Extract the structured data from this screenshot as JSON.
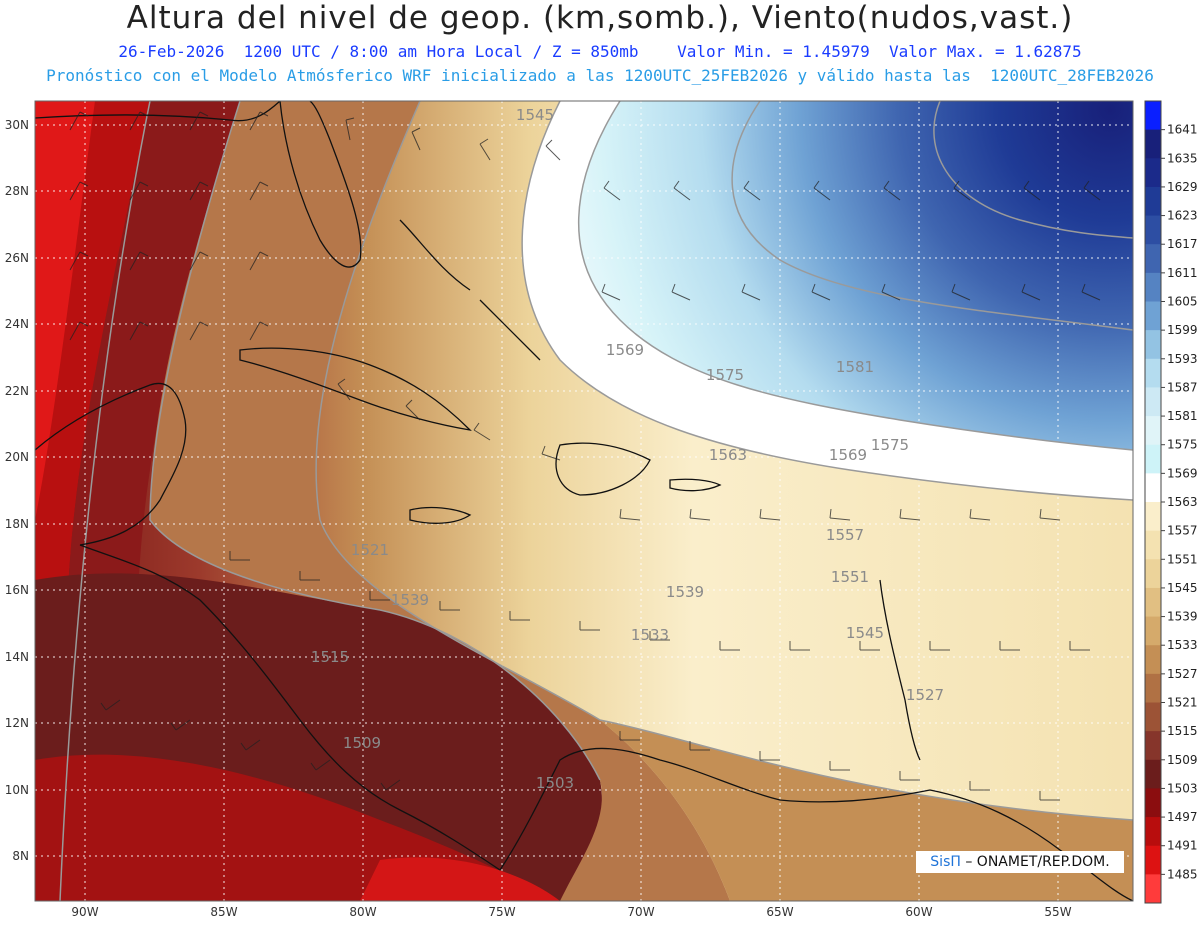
{
  "header": {
    "title": "Altura del nivel de geop. (km,somb.), Viento(nudos,vast.)",
    "subtitle": "26-Feb-2026  1200 UTC / 8:00 am Hora Local / Z = 850mb    Valor Min. = 1.45979  Valor Max. = 1.62875",
    "subtitle2": "Pronóstico con el Modelo Atmósferico WRF inicializado a las 1200UTC_25FEB2026 y válido hasta las  1200UTC_28FEB2026"
  },
  "map": {
    "lat_labels": [
      "30N",
      "28N",
      "26N",
      "24N",
      "22N",
      "20N",
      "18N",
      "16N",
      "14N",
      "12N",
      "10N",
      "8N"
    ],
    "lon_labels": [
      "90W",
      "85W",
      "80W",
      "75W",
      "70W",
      "65W",
      "60W",
      "55W"
    ],
    "contour_labels": [
      "1545",
      "1569",
      "1575",
      "1581",
      "1563",
      "1569",
      "1575",
      "1557",
      "1551",
      "1539",
      "1545",
      "1533",
      "1521",
      "1515",
      "1509",
      "1503",
      "1527",
      "1539"
    ]
  },
  "colorbar": {
    "levels": [
      "1641",
      "1635",
      "1629",
      "1623",
      "1617",
      "1611",
      "1605",
      "1599",
      "1593",
      "1587",
      "1581",
      "1575",
      "1569",
      "1563",
      "1557",
      "1551",
      "1545",
      "1539",
      "1533",
      "1527",
      "1521",
      "1515",
      "1509",
      "1503",
      "1497",
      "1491",
      "1485"
    ],
    "colors": [
      "#0a1fff",
      "#18207a",
      "#1b2a8a",
      "#1f3b96",
      "#2d4ea3",
      "#3f65b0",
      "#5583c2",
      "#6fa2d4",
      "#93c3e3",
      "#b4dcef",
      "#cde9f4",
      "#e0f4f8",
      "#cef3f8",
      "#ffffff",
      "#faeecb",
      "#f4e2b1",
      "#ecd39a",
      "#e1bf82",
      "#d5aa6b",
      "#c48f55",
      "#b07144",
      "#9c5336",
      "#86352b",
      "#6b1d1c",
      "#8b0d0f",
      "#b80d0d",
      "#dd1212",
      "#ff3b3b"
    ]
  },
  "credit": {
    "brand": "SisΠ",
    "text": "– ONAMET/REP.DOM."
  }
}
